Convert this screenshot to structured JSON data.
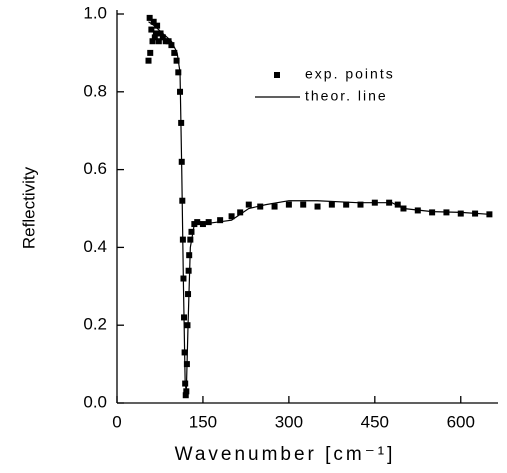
{
  "chart_data": {
    "type": "scatter",
    "x_label": "Wavenumber [cm⁻¹]",
    "y_label": "Reflectivity",
    "xlim": [
      0,
      665
    ],
    "ylim": [
      0,
      1.0
    ],
    "xticks": [
      0,
      150,
      300,
      450,
      600
    ],
    "yticks": [
      {
        "value": 0,
        "label": "0.0"
      },
      {
        "value": 0.2,
        "label": "0.2"
      },
      {
        "value": 0.4,
        "label": "0.4"
      },
      {
        "value": 0.6,
        "label": "0.6"
      },
      {
        "value": 0.8,
        "label": "0.8"
      },
      {
        "value": 1.0,
        "label": "1.0"
      }
    ],
    "legend": "upper right",
    "series": [
      {
        "name": "exp. points",
        "color": "#000000",
        "style": "markers",
        "x": [
          55,
          57,
          58,
          60,
          62,
          64,
          66,
          68,
          70,
          73,
          76,
          80,
          85,
          90,
          95,
          100,
          104,
          107,
          110,
          112,
          113,
          114,
          115,
          116,
          117,
          118,
          119,
          120,
          121,
          122,
          123,
          124,
          125,
          126,
          128,
          130,
          135,
          140,
          150,
          160,
          180,
          200,
          215,
          230,
          250,
          275,
          300,
          325,
          350,
          375,
          400,
          425,
          450,
          475,
          490,
          500,
          525,
          550,
          575,
          600,
          625,
          650
        ],
        "values": [
          0.88,
          0.99,
          0.9,
          0.96,
          0.93,
          0.98,
          0.94,
          0.95,
          0.97,
          0.93,
          0.95,
          0.94,
          0.93,
          0.93,
          0.92,
          0.9,
          0.88,
          0.85,
          0.8,
          0.72,
          0.62,
          0.52,
          0.42,
          0.32,
          0.22,
          0.13,
          0.05,
          0.02,
          0.03,
          0.1,
          0.2,
          0.28,
          0.34,
          0.38,
          0.42,
          0.44,
          0.46,
          0.465,
          0.46,
          0.465,
          0.47,
          0.48,
          0.49,
          0.51,
          0.505,
          0.505,
          0.51,
          0.51,
          0.505,
          0.51,
          0.51,
          0.51,
          0.515,
          0.515,
          0.51,
          0.5,
          0.495,
          0.49,
          0.49,
          0.487,
          0.487,
          0.485
        ]
      },
      {
        "name": "theor. line",
        "color": "#000000",
        "style": "line",
        "x": [
          55,
          65,
          80,
          95,
          105,
          110,
          113,
          116,
          119,
          121,
          124,
          128,
          135,
          150,
          200,
          230,
          260,
          300,
          350,
          420,
          480,
          500,
          550,
          600,
          650
        ],
        "values": [
          0.98,
          0.97,
          0.95,
          0.93,
          0.9,
          0.85,
          0.6,
          0.3,
          0.05,
          0.03,
          0.2,
          0.4,
          0.46,
          0.46,
          0.47,
          0.5,
          0.51,
          0.52,
          0.52,
          0.515,
          0.515,
          0.5,
          0.492,
          0.49,
          0.485
        ]
      }
    ]
  }
}
